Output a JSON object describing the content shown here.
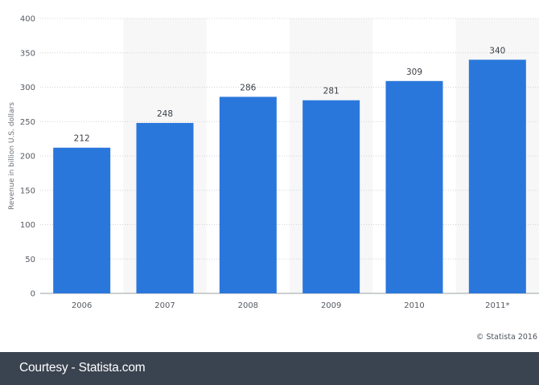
{
  "chart_data": {
    "type": "bar",
    "categories": [
      "2006",
      "2007",
      "2008",
      "2009",
      "2010",
      "2011*"
    ],
    "values": [
      212,
      248,
      286,
      281,
      309,
      340
    ],
    "data_labels": [
      "212",
      "248",
      "286",
      "281",
      "309",
      "340"
    ],
    "ylabel": "Revenue in billion U.S. dollars",
    "xlabel": "",
    "ylim": [
      0,
      400
    ],
    "yticks": [
      0,
      50,
      100,
      150,
      200,
      250,
      300,
      350,
      400
    ],
    "grid": true,
    "bar_color": "#2a77dc",
    "band_color": "#f7f7f7",
    "gridline_color": "#cfd3d8"
  },
  "credit": "© Statista 2016",
  "footer": {
    "text": "Courtesy - Statista.com",
    "background": "#3a4350"
  }
}
